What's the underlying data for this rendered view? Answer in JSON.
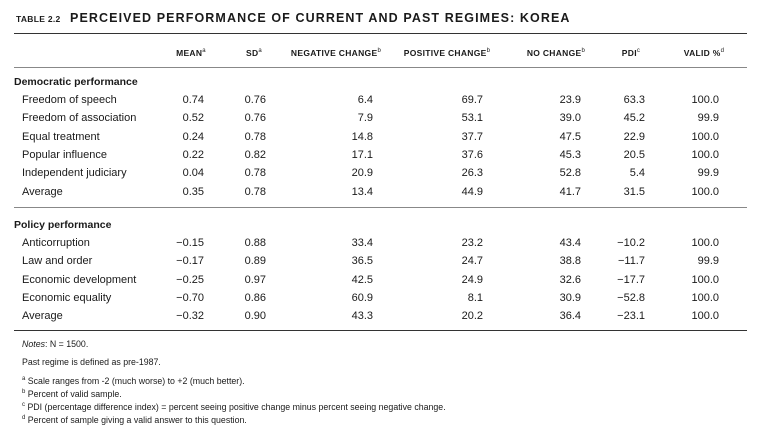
{
  "table": {
    "number": "TABLE 2.2",
    "title": "PERCEIVED PERFORMANCE OF CURRENT AND PAST REGIMES: KOREA",
    "columns": [
      {
        "label": "MEAN",
        "sup": "a"
      },
      {
        "label": "SD",
        "sup": "a"
      },
      {
        "label": "NEGATIVE CHANGE",
        "sup": "b"
      },
      {
        "label": "POSITIVE CHANGE",
        "sup": "b"
      },
      {
        "label": "NO CHANGE",
        "sup": "b"
      },
      {
        "label": "PDI",
        "sup": "c"
      },
      {
        "label": "VALID %",
        "sup": "d"
      }
    ],
    "sections": [
      {
        "heading": "Democratic performance",
        "rows": [
          {
            "label": "Freedom of speech",
            "values": [
              "0.74",
              "0.76",
              "6.4",
              "69.7",
              "23.9",
              "63.3",
              "100.0"
            ]
          },
          {
            "label": "Freedom of association",
            "values": [
              "0.52",
              "0.76",
              "7.9",
              "53.1",
              "39.0",
              "45.2",
              "99.9"
            ]
          },
          {
            "label": "Equal treatment",
            "values": [
              "0.24",
              "0.78",
              "14.8",
              "37.7",
              "47.5",
              "22.9",
              "100.0"
            ]
          },
          {
            "label": "Popular influence",
            "values": [
              "0.22",
              "0.82",
              "17.1",
              "37.6",
              "45.3",
              "20.5",
              "100.0"
            ]
          },
          {
            "label": "Independent judiciary",
            "values": [
              "0.04",
              "0.78",
              "20.9",
              "26.3",
              "52.8",
              "5.4",
              "99.9"
            ]
          },
          {
            "label": "Average",
            "values": [
              "0.35",
              "0.78",
              "13.4",
              "44.9",
              "41.7",
              "31.5",
              "100.0"
            ]
          }
        ]
      },
      {
        "heading": "Policy performance",
        "rows": [
          {
            "label": "Anticorruption",
            "values": [
              "−0.15",
              "0.88",
              "33.4",
              "23.2",
              "43.4",
              "−10.2",
              "100.0"
            ]
          },
          {
            "label": "Law and order",
            "values": [
              "−0.17",
              "0.89",
              "36.5",
              "24.7",
              "38.8",
              "−11.7",
              "99.9"
            ]
          },
          {
            "label": "Economic development",
            "values": [
              "−0.25",
              "0.97",
              "42.5",
              "24.9",
              "32.6",
              "−17.7",
              "100.0"
            ]
          },
          {
            "label": "Economic equality",
            "values": [
              "−0.70",
              "0.86",
              "60.9",
              "8.1",
              "30.9",
              "−52.8",
              "100.0"
            ]
          },
          {
            "label": "Average",
            "values": [
              "−0.32",
              "0.90",
              "43.3",
              "20.2",
              "36.4",
              "−23.1",
              "100.0"
            ]
          }
        ]
      }
    ],
    "notes": {
      "label": "Notes",
      "n_text": ": N = 1500.",
      "past_regime": "Past regime is defined as pre-1987.",
      "footnotes": [
        {
          "mark": "a",
          "text": "Scale ranges from -2 (much worse) to +2 (much better)."
        },
        {
          "mark": "b",
          "text": "Percent of valid sample."
        },
        {
          "mark": "c",
          "text": "PDI (percentage difference index) = percent seeing positive change minus percent seeing negative change."
        },
        {
          "mark": "d",
          "text": "Percent of sample giving a valid answer to this question."
        }
      ]
    }
  }
}
